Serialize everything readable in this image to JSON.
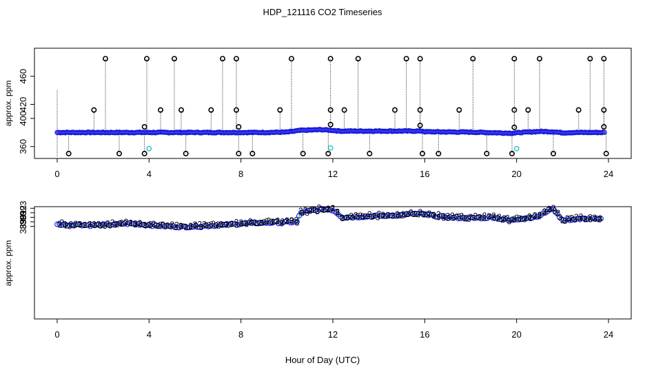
{
  "title": "HDP_121116  CO2 Timeseries",
  "xlabel": "Hour of Day (UTC)",
  "colors": {
    "baseline": "#1a1adf",
    "spike": "#000000",
    "cyan": "#22c7c7",
    "green": "#12b212",
    "blue": "#1a1adf"
  },
  "chart_data": [
    {
      "type": "scatter",
      "panel": "top",
      "ylabel": "approx. ppm",
      "xlim": [
        0,
        24
      ],
      "ylim": [
        345,
        495
      ],
      "xticks": [
        0,
        4,
        8,
        12,
        16,
        20,
        24
      ],
      "yticks": [
        360,
        400,
        420,
        460
      ],
      "baseline_series": [
        [
          0,
          380
        ],
        [
          2,
          380
        ],
        [
          4,
          380
        ],
        [
          6,
          380
        ],
        [
          8,
          380
        ],
        [
          9,
          380
        ],
        [
          10,
          380.5
        ],
        [
          10.6,
          383
        ],
        [
          11.5,
          384
        ],
        [
          12,
          383
        ],
        [
          12.3,
          382
        ],
        [
          14,
          382
        ],
        [
          15.9,
          382
        ],
        [
          16,
          381
        ],
        [
          18,
          380.5
        ],
        [
          19.8,
          379
        ],
        [
          20.2,
          380
        ],
        [
          21,
          381.5
        ],
        [
          21.6,
          381
        ],
        [
          22,
          379.5
        ],
        [
          22.5,
          380
        ],
        [
          23.8,
          380
        ]
      ],
      "spikes_high": [
        2.1,
        3.9,
        5.1,
        7.2,
        7.8,
        10.2,
        11.9,
        13.1,
        15.2,
        15.8,
        18.1,
        19.9,
        21.0,
        23.2,
        23.8
      ],
      "spikes_mid": [
        1.6,
        4.5,
        5.4,
        6.7,
        7.8,
        9.7,
        11.9,
        12.5,
        14.7,
        15.8,
        17.5,
        19.9,
        20.5,
        22.7,
        23.8
      ],
      "spikes_low": [
        0.5,
        2.7,
        3.8,
        5.6,
        7.9,
        8.5,
        10.7,
        11.8,
        13.6,
        15.9,
        16.6,
        18.7,
        19.8,
        21.6,
        23.9
      ],
      "spike_values": {
        "high": 485,
        "mid": 412,
        "low": 350
      },
      "cyan_points": [
        [
          4.0,
          357
        ],
        [
          11.9,
          358
        ],
        [
          20.0,
          357
        ]
      ]
    },
    {
      "type": "scatter",
      "panel": "bottom",
      "ylabel": "approx. ppm",
      "xlim": [
        0,
        24
      ],
      "ylim": [
        368.7,
        393.2
      ],
      "xticks": [
        0,
        4,
        8,
        12,
        16,
        20,
        24
      ],
      "yticks": [
        389,
        390,
        391,
        392,
        393
      ],
      "series": [
        {
          "name": "3",
          "color": "blue",
          "symbol": "3"
        },
        {
          "name": "2",
          "color": "green",
          "symbol": "2"
        }
      ],
      "profile": [
        [
          0,
          389.6
        ],
        [
          0.3,
          389.3
        ],
        [
          1,
          389.4
        ],
        [
          1.5,
          389.2
        ],
        [
          2,
          389.3
        ],
        [
          3,
          389.6
        ],
        [
          3.5,
          389.5
        ],
        [
          4,
          389.3
        ],
        [
          4.8,
          389.0
        ],
        [
          5.5,
          388.9
        ],
        [
          6.5,
          389.1
        ],
        [
          7.2,
          389.3
        ],
        [
          7.8,
          389.5
        ],
        [
          8.2,
          389.7
        ],
        [
          9,
          389.8
        ],
        [
          10,
          389.9
        ],
        [
          10.5,
          390.0
        ],
        [
          10.55,
          392.0
        ],
        [
          11,
          392.4
        ],
        [
          11.7,
          392.8
        ],
        [
          12,
          392.6
        ],
        [
          12.2,
          391.9
        ],
        [
          12.4,
          391.0
        ],
        [
          13,
          391.1
        ],
        [
          14,
          391.3
        ],
        [
          15,
          391.5
        ],
        [
          15.5,
          391.8
        ],
        [
          16,
          391.7
        ],
        [
          16.5,
          391.3
        ],
        [
          17,
          391.0
        ],
        [
          17.5,
          390.9
        ],
        [
          18,
          390.8
        ],
        [
          18.5,
          390.9
        ],
        [
          19,
          391.0
        ],
        [
          19.3,
          390.7
        ],
        [
          19.7,
          390.3
        ],
        [
          20,
          390.6
        ],
        [
          20.5,
          390.9
        ],
        [
          21,
          391.2
        ],
        [
          21.3,
          392.3
        ],
        [
          21.5,
          393.0
        ],
        [
          21.7,
          392.3
        ],
        [
          21.9,
          391.0
        ],
        [
          22,
          390.3
        ],
        [
          22.5,
          390.6
        ],
        [
          23,
          390.7
        ],
        [
          23.7,
          390.5
        ]
      ]
    }
  ]
}
